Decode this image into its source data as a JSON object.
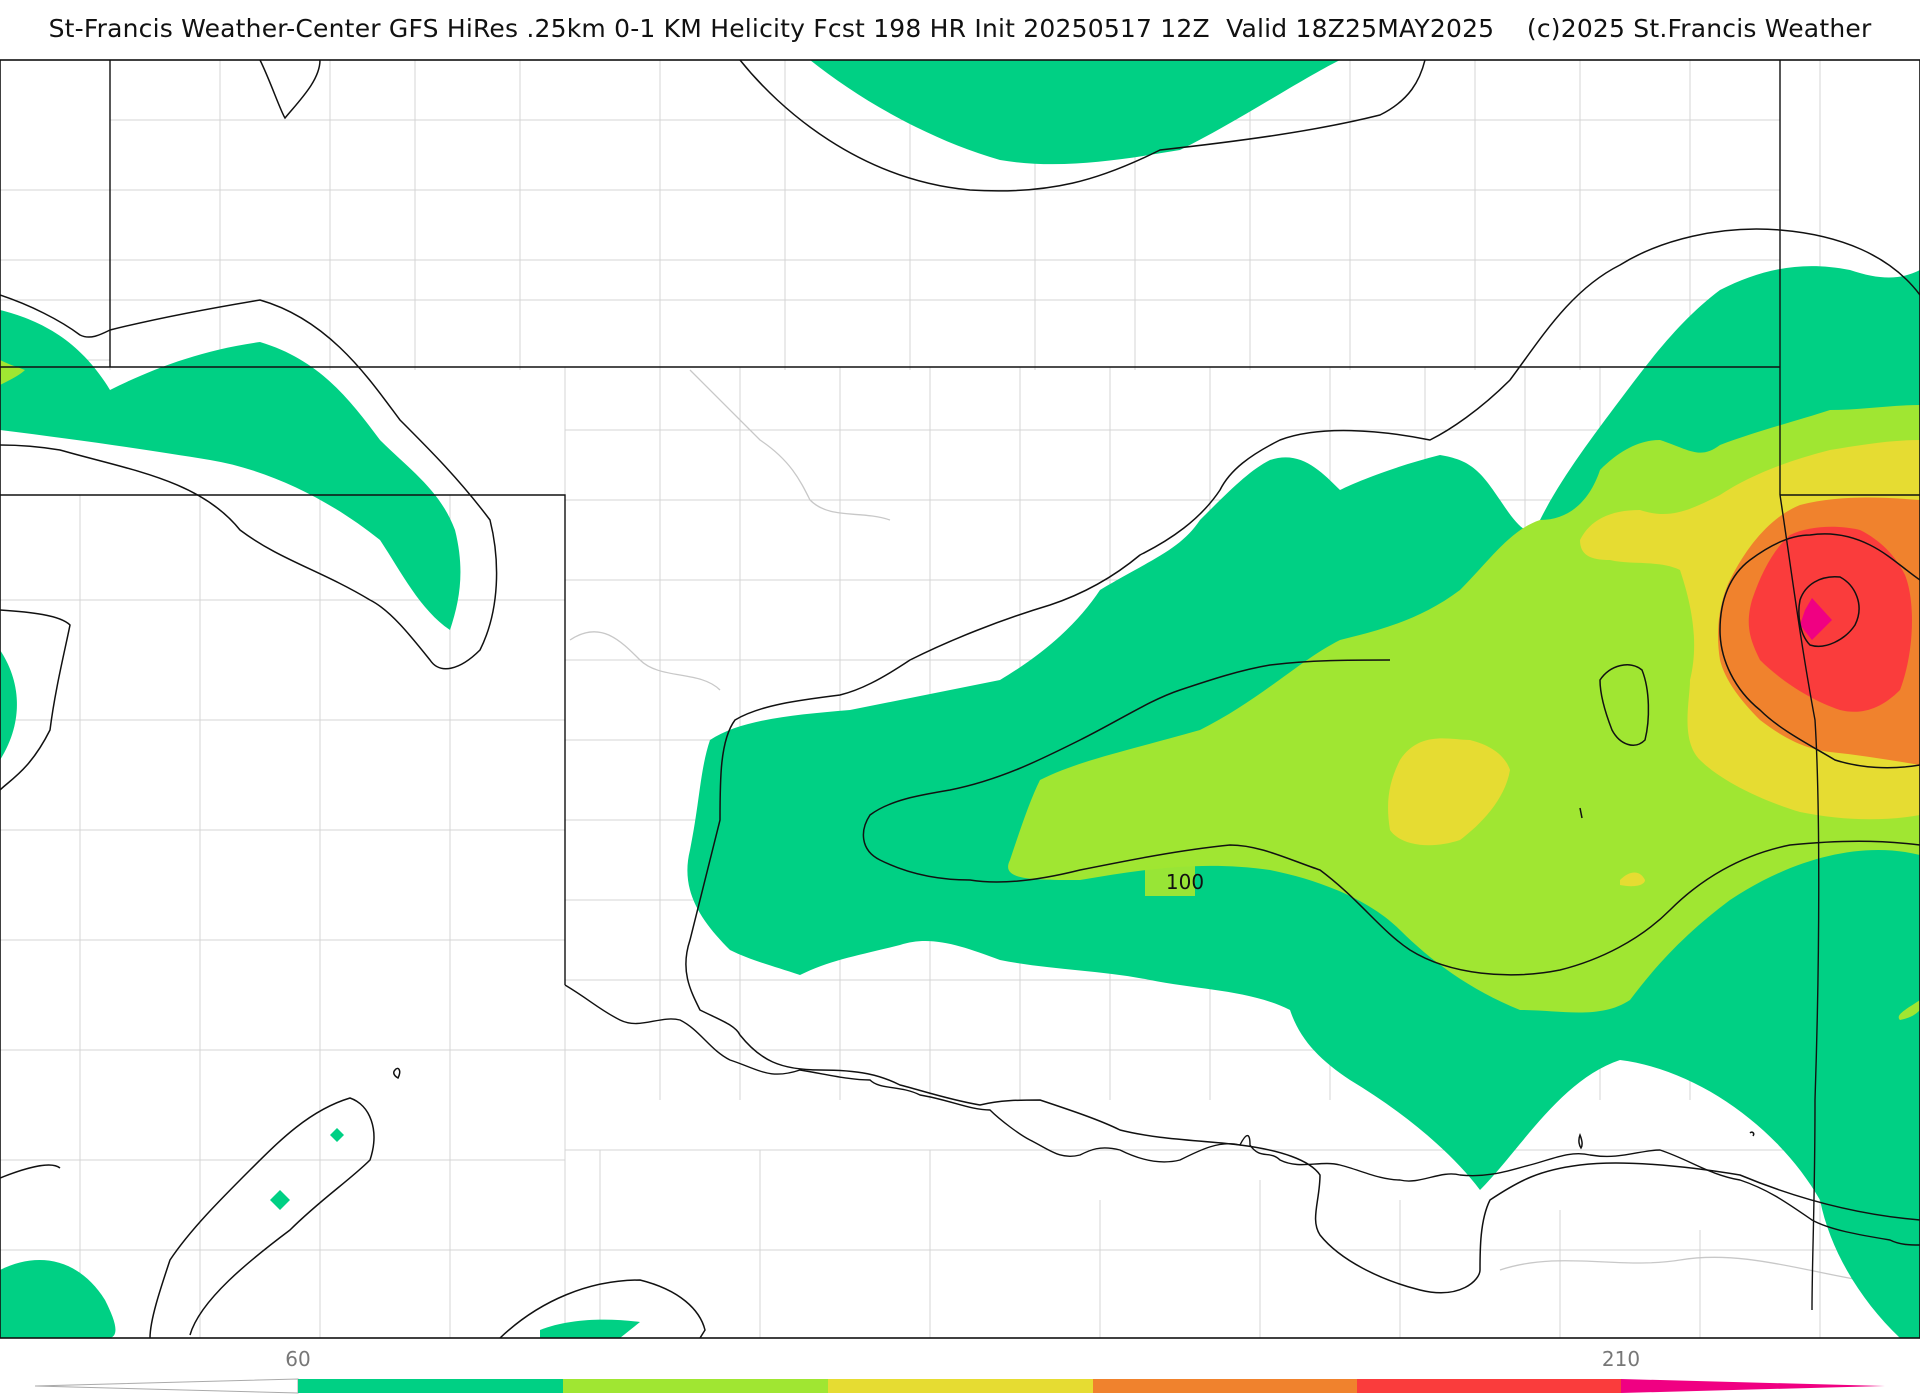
{
  "title": "St-Francis Weather-Center GFS HiRes .25km 0-1 KM Helicity Fcst 198 HR Init 20250517 12Z  Valid 18Z25MAY2025    (c)2025 St.Francis Weather",
  "contour_label": "100",
  "colorbar": {
    "tick_labels": [
      "60",
      "210"
    ],
    "bands": [
      {
        "name": "band-green",
        "color": "#00d084"
      },
      {
        "name": "band-light-green",
        "color": "#a0e632"
      },
      {
        "name": "band-yellow",
        "color": "#e6dc32"
      },
      {
        "name": "band-orange",
        "color": "#f0822d"
      },
      {
        "name": "band-red",
        "color": "#fa3c3c"
      },
      {
        "name": "band-magenta",
        "color": "#f00082"
      }
    ],
    "under_color": "#ffffff",
    "over_color": "#f00082"
  }
}
